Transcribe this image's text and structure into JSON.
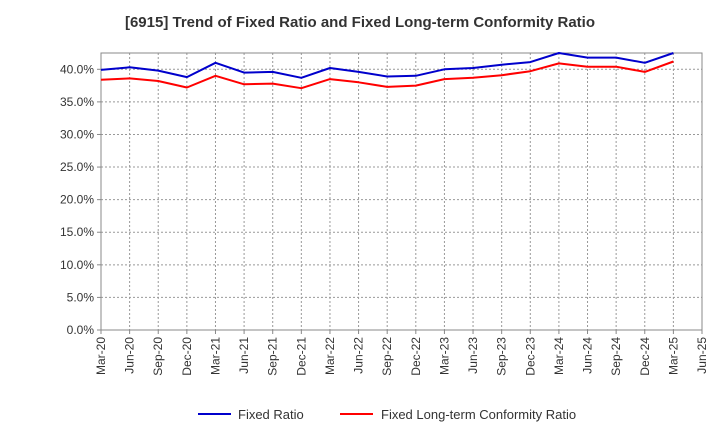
{
  "chart_data": {
    "type": "line",
    "title": "[6915]  Trend of Fixed Ratio and Fixed Long-term Conformity Ratio",
    "xlabel": "",
    "ylabel": "",
    "x": [
      "Mar-20",
      "Jun-20",
      "Sep-20",
      "Dec-20",
      "Mar-21",
      "Jun-21",
      "Sep-21",
      "Dec-21",
      "Mar-22",
      "Jun-22",
      "Sep-22",
      "Dec-22",
      "Mar-23",
      "Jun-23",
      "Sep-23",
      "Dec-23",
      "Mar-24",
      "Jun-24",
      "Sep-24",
      "Dec-24",
      "Mar-25",
      "Jun-25"
    ],
    "ylim": [
      0,
      42.5
    ],
    "yticks": [
      0,
      5,
      10,
      15,
      20,
      25,
      30,
      35,
      40
    ],
    "ytick_labels": [
      "0.0%",
      "5.0%",
      "10.0%",
      "15.0%",
      "20.0%",
      "25.0%",
      "30.0%",
      "35.0%",
      "40.0%"
    ],
    "grid": true,
    "legend_position": "bottom",
    "series": [
      {
        "name": "Fixed Ratio",
        "color": "#0000cc",
        "values": [
          39.9,
          40.3,
          39.8,
          38.8,
          41.0,
          39.5,
          39.6,
          38.7,
          40.2,
          39.6,
          38.9,
          39.0,
          40.0,
          40.2,
          40.7,
          41.1,
          42.5,
          41.8,
          41.8,
          41.0,
          42.5,
          null
        ]
      },
      {
        "name": "Fixed Long-term Conformity Ratio",
        "color": "#ff0000",
        "values": [
          38.4,
          38.6,
          38.2,
          37.2,
          39.0,
          37.7,
          37.8,
          37.1,
          38.5,
          38.0,
          37.3,
          37.5,
          38.5,
          38.7,
          39.1,
          39.7,
          40.9,
          40.4,
          40.4,
          39.6,
          41.2,
          null
        ]
      }
    ]
  }
}
